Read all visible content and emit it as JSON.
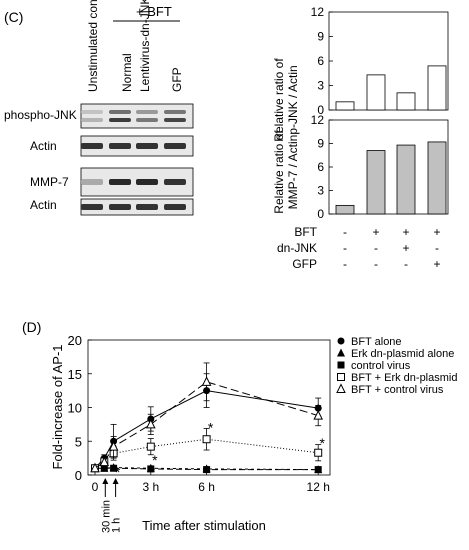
{
  "panel_c": {
    "label": "(C)",
    "bft_header": "+ BFT",
    "lane_labels": [
      "Unstimulated control",
      "Normal",
      "Lentivirus-dn-JNK",
      "GFP"
    ],
    "blot_labels": [
      "phospho-JNK",
      "Actin",
      "MMP-7",
      "Actin"
    ],
    "blot_intensity": [
      [
        0.25,
        0.85,
        0.55,
        0.8
      ],
      [
        0.9,
        0.9,
        0.9,
        0.9
      ],
      [
        0.3,
        0.95,
        0.95,
        0.9
      ],
      [
        0.9,
        0.9,
        0.9,
        0.9
      ]
    ],
    "condition_rows": [
      {
        "label": "BFT",
        "values": [
          "-",
          "+",
          "+",
          "+"
        ]
      },
      {
        "label": "dn-JNK",
        "values": [
          "-",
          "-",
          "+",
          "-"
        ]
      },
      {
        "label": "GFP",
        "values": [
          "-",
          "-",
          "-",
          "+"
        ]
      }
    ]
  },
  "panel_d": {
    "label": "(D)"
  },
  "chart_data": [
    {
      "type": "bar",
      "ylabel_line1": "Relative ratio of",
      "ylabel_line2": "p-JNK / Actin",
      "ylim": [
        0,
        12
      ],
      "yticks": [
        "0",
        "3",
        "6",
        "9",
        "12"
      ],
      "values": [
        1,
        4.3,
        2.1,
        5.4
      ],
      "fill": "#ffffff"
    },
    {
      "type": "bar",
      "ylabel_line1": "Relative ratio of",
      "ylabel_line2": "MMP-7 / Actin",
      "ylim": [
        0,
        12
      ],
      "yticks": [
        "0",
        "3",
        "6",
        "9",
        "12"
      ],
      "values": [
        1.1,
        8.1,
        8.8,
        9.2
      ],
      "fill": "#c0c0c0"
    },
    {
      "type": "line",
      "ylabel": "Fold-increase of AP-1",
      "xlabel": "Time after stimulation",
      "ylim": [
        0,
        20
      ],
      "yticks": [
        "0",
        "5",
        "10",
        "15",
        "20"
      ],
      "xticks": [
        "0",
        "3 h",
        "6 h",
        "12 h"
      ],
      "x_values": [
        0,
        0.5,
        1,
        3,
        6,
        12
      ],
      "arrow_labels": [
        "30 min",
        "1 h"
      ],
      "series": [
        {
          "name": "BFT alone",
          "marker": "circle-filled",
          "dash": "",
          "y": [
            1,
            2.5,
            5,
            8.3,
            12.5,
            9.9
          ],
          "err": [
            0,
            0.5,
            2.5,
            1.8,
            2.5,
            1.5
          ]
        },
        {
          "name": "Erk dn-plasmid alone",
          "marker": "triangle-filled",
          "dash": "3,3",
          "y": [
            1,
            1,
            1.1,
            1,
            0.9,
            0.8
          ],
          "err": [
            0,
            0.1,
            0.2,
            0.2,
            0.2,
            0.2
          ]
        },
        {
          "name": "control virus",
          "marker": "square-filled",
          "dash": "6,3",
          "y": [
            1,
            1,
            1,
            0.9,
            0.8,
            0.8
          ],
          "err": [
            0,
            0.1,
            0.2,
            0.2,
            0.2,
            0.2
          ]
        },
        {
          "name": "BFT + Erk dn-plasmid",
          "marker": "square-open",
          "dash": "1,2",
          "y": [
            1,
            2,
            3.2,
            4.2,
            5.3,
            3.3
          ],
          "err": [
            0,
            0.6,
            1,
            1.2,
            1.6,
            1.2
          ]
        },
        {
          "name": "BFT + control virus",
          "marker": "triangle-open",
          "dash": "8,4",
          "y": [
            1,
            1.9,
            4.2,
            7.5,
            13.8,
            8.8
          ],
          "err": [
            0,
            0.6,
            1.5,
            1.5,
            2.8,
            1.5
          ]
        }
      ],
      "stars": [
        {
          "x": 1,
          "y": 0.9,
          "text": "*"
        },
        {
          "x": 3,
          "y": 2.7,
          "text": "*"
        },
        {
          "x": 6,
          "y": 7.5,
          "text": "*"
        },
        {
          "x": 12,
          "y": 5.2,
          "text": "*"
        }
      ]
    }
  ]
}
